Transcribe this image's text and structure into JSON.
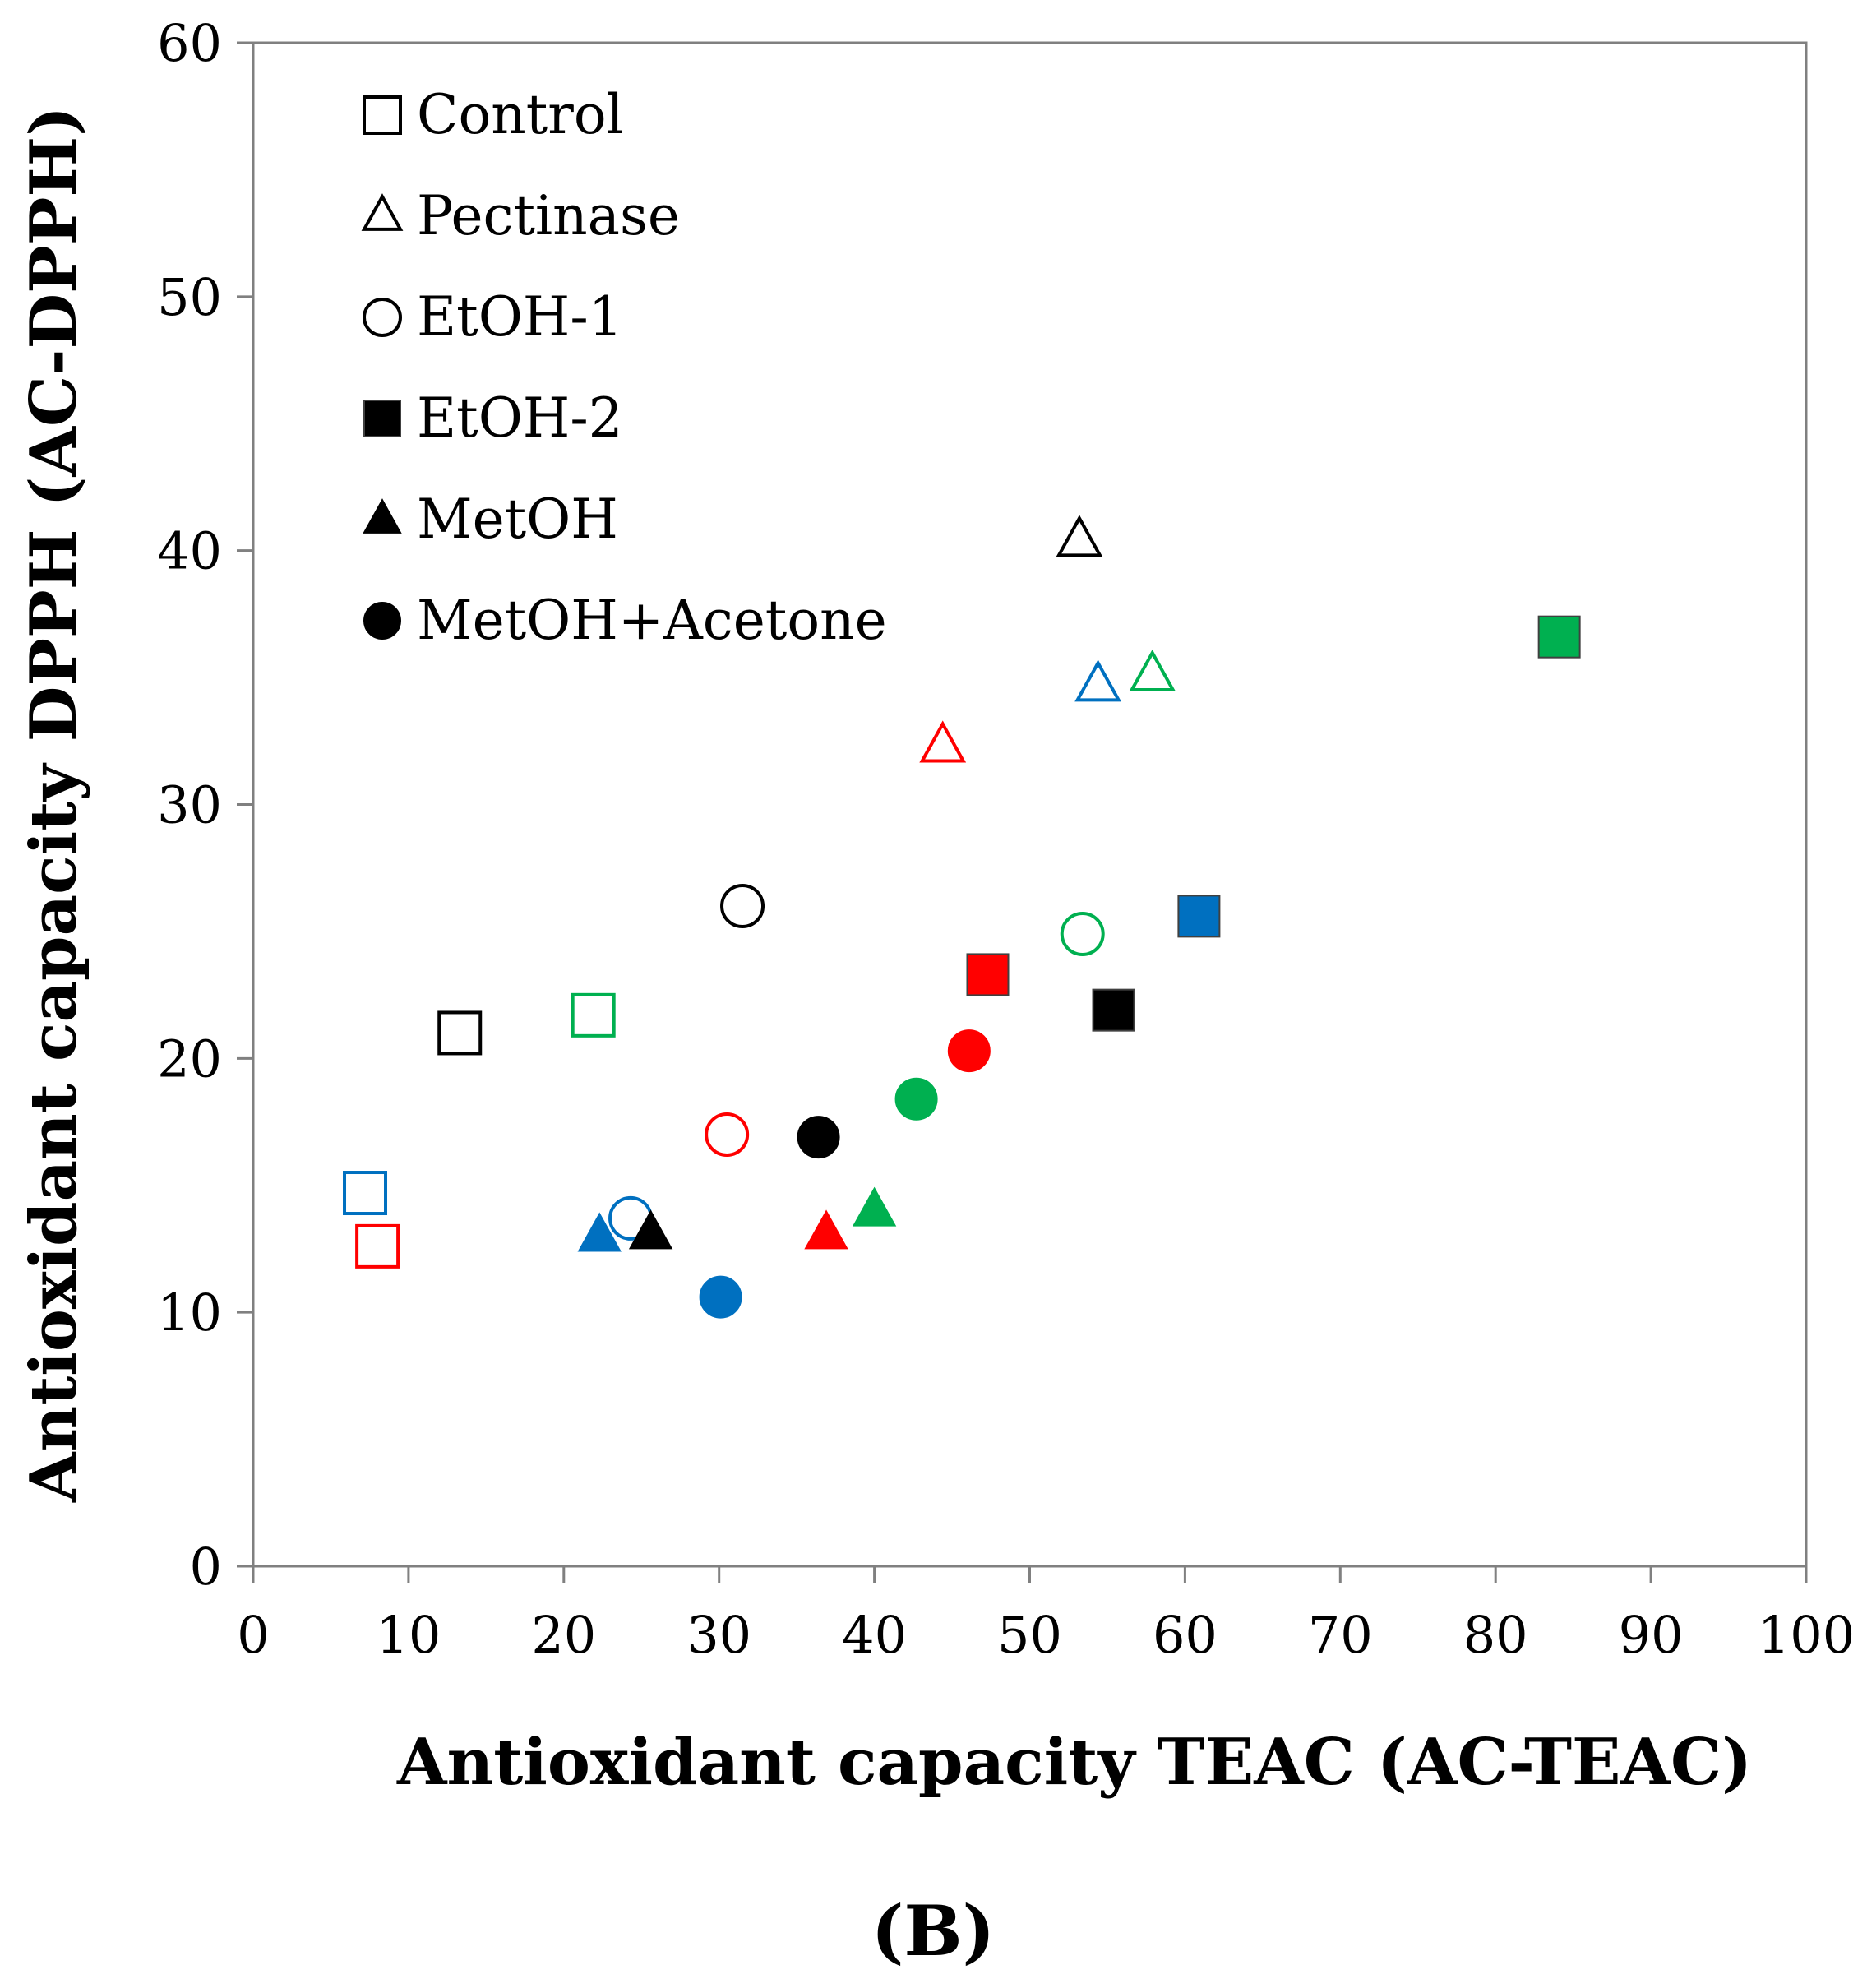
{
  "chart_data": {
    "type": "scatter",
    "title": "",
    "panel_label": "(B)",
    "xlabel": "Antioxidant capacity TEAC (AC-TEAC)",
    "ylabel": "Antioxidant capacity DPPH (AC-DPPH)",
    "xlim": [
      0,
      100
    ],
    "ylim": [
      0,
      60
    ],
    "xticks": [
      "0",
      "10",
      "20",
      "30",
      "40",
      "50",
      "60",
      "70",
      "80",
      "90",
      "100"
    ],
    "yticks": [
      "0",
      "10",
      "20",
      "30",
      "40",
      "50",
      "60"
    ],
    "grid": false,
    "legend_position": "top-left",
    "legend": [
      {
        "label": "Control",
        "marker": "square",
        "filled": false
      },
      {
        "label": "Pectinase",
        "marker": "triangle",
        "filled": false
      },
      {
        "label": "EtOH-1",
        "marker": "circle",
        "filled": false
      },
      {
        "label": "EtOH-2",
        "marker": "square",
        "filled": true
      },
      {
        "label": "MetOH",
        "marker": "triangle",
        "filled": true
      },
      {
        "label": "MetOH+Acetone",
        "marker": "circle",
        "filled": true
      }
    ],
    "colors": {
      "black": "#000000",
      "red": "#ff0000",
      "blue": "#0070c0",
      "green": "#00b050"
    },
    "series": [
      {
        "name": "Control",
        "marker": "square",
        "filled": false,
        "points": [
          {
            "x": 13.3,
            "y": 21.0,
            "color": "black"
          },
          {
            "x": 8.0,
            "y": 12.6,
            "color": "red"
          },
          {
            "x": 7.2,
            "y": 14.7,
            "color": "blue"
          },
          {
            "x": 21.9,
            "y": 21.7,
            "color": "green"
          }
        ]
      },
      {
        "name": "Pectinase",
        "marker": "triangle",
        "filled": false,
        "points": [
          {
            "x": 53.2,
            "y": 40.4,
            "color": "black"
          },
          {
            "x": 44.4,
            "y": 32.3,
            "color": "red"
          },
          {
            "x": 54.4,
            "y": 34.7,
            "color": "blue"
          },
          {
            "x": 57.9,
            "y": 35.1,
            "color": "green"
          }
        ]
      },
      {
        "name": "EtOH-1",
        "marker": "circle",
        "filled": false,
        "points": [
          {
            "x": 31.5,
            "y": 26.0,
            "color": "black"
          },
          {
            "x": 30.5,
            "y": 17.0,
            "color": "red"
          },
          {
            "x": 24.3,
            "y": 13.7,
            "color": "blue"
          },
          {
            "x": 53.4,
            "y": 24.9,
            "color": "green"
          }
        ]
      },
      {
        "name": "EtOH-2",
        "marker": "square",
        "filled": true,
        "points": [
          {
            "x": 55.4,
            "y": 21.9,
            "color": "black"
          },
          {
            "x": 47.3,
            "y": 23.3,
            "color": "red"
          },
          {
            "x": 60.9,
            "y": 25.6,
            "color": "blue"
          },
          {
            "x": 84.1,
            "y": 36.6,
            "color": "green"
          }
        ]
      },
      {
        "name": "MetOH",
        "marker": "triangle",
        "filled": true,
        "points": [
          {
            "x": 25.6,
            "y": 13.1,
            "color": "black"
          },
          {
            "x": 36.9,
            "y": 13.1,
            "color": "red"
          },
          {
            "x": 22.3,
            "y": 13.0,
            "color": "blue"
          },
          {
            "x": 40.0,
            "y": 14.0,
            "color": "green"
          }
        ]
      },
      {
        "name": "MetOH+Acetone",
        "marker": "circle",
        "filled": true,
        "points": [
          {
            "x": 36.4,
            "y": 16.9,
            "color": "black"
          },
          {
            "x": 46.1,
            "y": 20.3,
            "color": "red"
          },
          {
            "x": 30.1,
            "y": 10.6,
            "color": "blue"
          },
          {
            "x": 42.7,
            "y": 18.4,
            "color": "green"
          }
        ]
      }
    ]
  }
}
